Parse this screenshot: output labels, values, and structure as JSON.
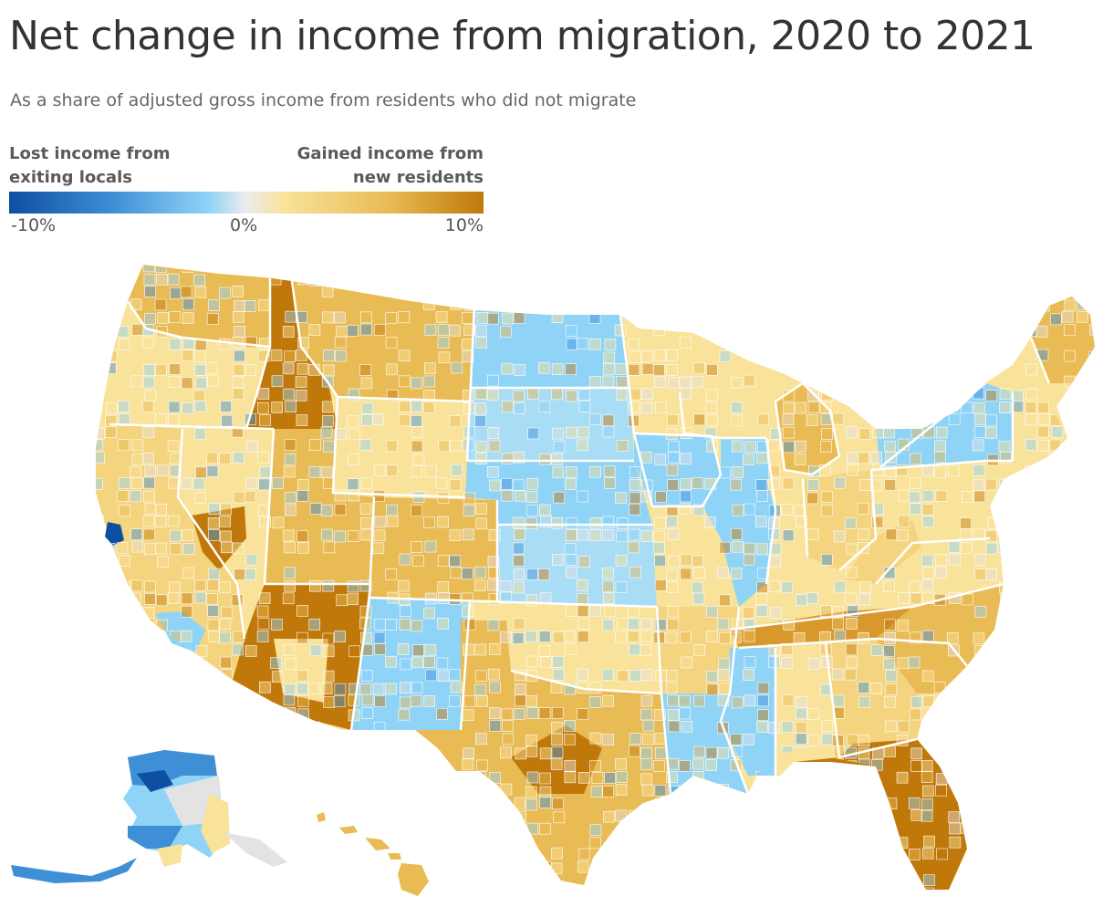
{
  "title": "Net change in income from migration, 2020 to 2021",
  "subtitle": "As a share of adjusted gross income from residents who did not migrate",
  "legend": {
    "left_label_line1": "Lost income from",
    "left_label_line2": "exiting locals",
    "right_label_line1": "Gained income from",
    "right_label_line2": "new residents",
    "tick_min": "-10%",
    "tick_mid": "0%",
    "tick_max": "10%",
    "domain": [
      -10,
      0,
      10
    ],
    "unit": "%"
  },
  "colors": {
    "strong_loss": "#0d4fa0",
    "loss": "#3f8fd6",
    "mild_loss": "#8fd3f7",
    "neutral": "#e3e3e3",
    "mild_gain": "#f9e29a",
    "gain": "#e9bb55",
    "strong_gain": "#c0780a",
    "state_border": "#ffffff"
  },
  "map": {
    "regions": [
      {
        "name": "Washington",
        "tone": "gain"
      },
      {
        "name": "Oregon",
        "tone": "mild_gain"
      },
      {
        "name": "California",
        "tone": "mild_gain"
      },
      {
        "name": "San Francisco Bay Area",
        "tone": "strong_loss"
      },
      {
        "name": "Los Angeles area",
        "tone": "mild_loss"
      },
      {
        "name": "Nevada",
        "tone": "mild_gain"
      },
      {
        "name": "Idaho",
        "tone": "strong_gain"
      },
      {
        "name": "Montana",
        "tone": "gain"
      },
      {
        "name": "Wyoming",
        "tone": "mild_gain"
      },
      {
        "name": "Utah",
        "tone": "gain"
      },
      {
        "name": "Arizona",
        "tone": "strong_gain"
      },
      {
        "name": "Colorado",
        "tone": "gain"
      },
      {
        "name": "New Mexico",
        "tone": "mild_loss"
      },
      {
        "name": "North Dakota",
        "tone": "mild_loss"
      },
      {
        "name": "South Dakota",
        "tone": "mild_loss"
      },
      {
        "name": "Nebraska",
        "tone": "mild_loss"
      },
      {
        "name": "Kansas",
        "tone": "mild_loss"
      },
      {
        "name": "Oklahoma",
        "tone": "mild_gain"
      },
      {
        "name": "Texas",
        "tone": "gain"
      },
      {
        "name": "Minnesota",
        "tone": "mild_gain"
      },
      {
        "name": "Iowa",
        "tone": "mild_loss"
      },
      {
        "name": "Missouri",
        "tone": "mild_gain"
      },
      {
        "name": "Arkansas",
        "tone": "mild_gain"
      },
      {
        "name": "Louisiana",
        "tone": "mild_loss"
      },
      {
        "name": "Wisconsin",
        "tone": "mild_gain"
      },
      {
        "name": "Illinois",
        "tone": "mild_loss"
      },
      {
        "name": "Michigan",
        "tone": "gain"
      },
      {
        "name": "Indiana",
        "tone": "mild_gain"
      },
      {
        "name": "Ohio",
        "tone": "mild_gain"
      },
      {
        "name": "Kentucky",
        "tone": "mild_gain"
      },
      {
        "name": "Tennessee",
        "tone": "strong_gain"
      },
      {
        "name": "Mississippi",
        "tone": "mild_loss"
      },
      {
        "name": "Alabama",
        "tone": "mild_gain"
      },
      {
        "name": "Georgia",
        "tone": "mild_gain"
      },
      {
        "name": "Florida",
        "tone": "strong_gain"
      },
      {
        "name": "South Carolina",
        "tone": "gain"
      },
      {
        "name": "North Carolina",
        "tone": "gain"
      },
      {
        "name": "Virginia",
        "tone": "mild_gain"
      },
      {
        "name": "West Virginia",
        "tone": "mild_gain"
      },
      {
        "name": "Pennsylvania",
        "tone": "mild_gain"
      },
      {
        "name": "New York",
        "tone": "mild_loss"
      },
      {
        "name": "New England",
        "tone": "mild_gain"
      },
      {
        "name": "Maine",
        "tone": "gain"
      },
      {
        "name": "Alaska",
        "tone": "loss"
      },
      {
        "name": "Hawaii",
        "tone": "gain"
      }
    ]
  }
}
